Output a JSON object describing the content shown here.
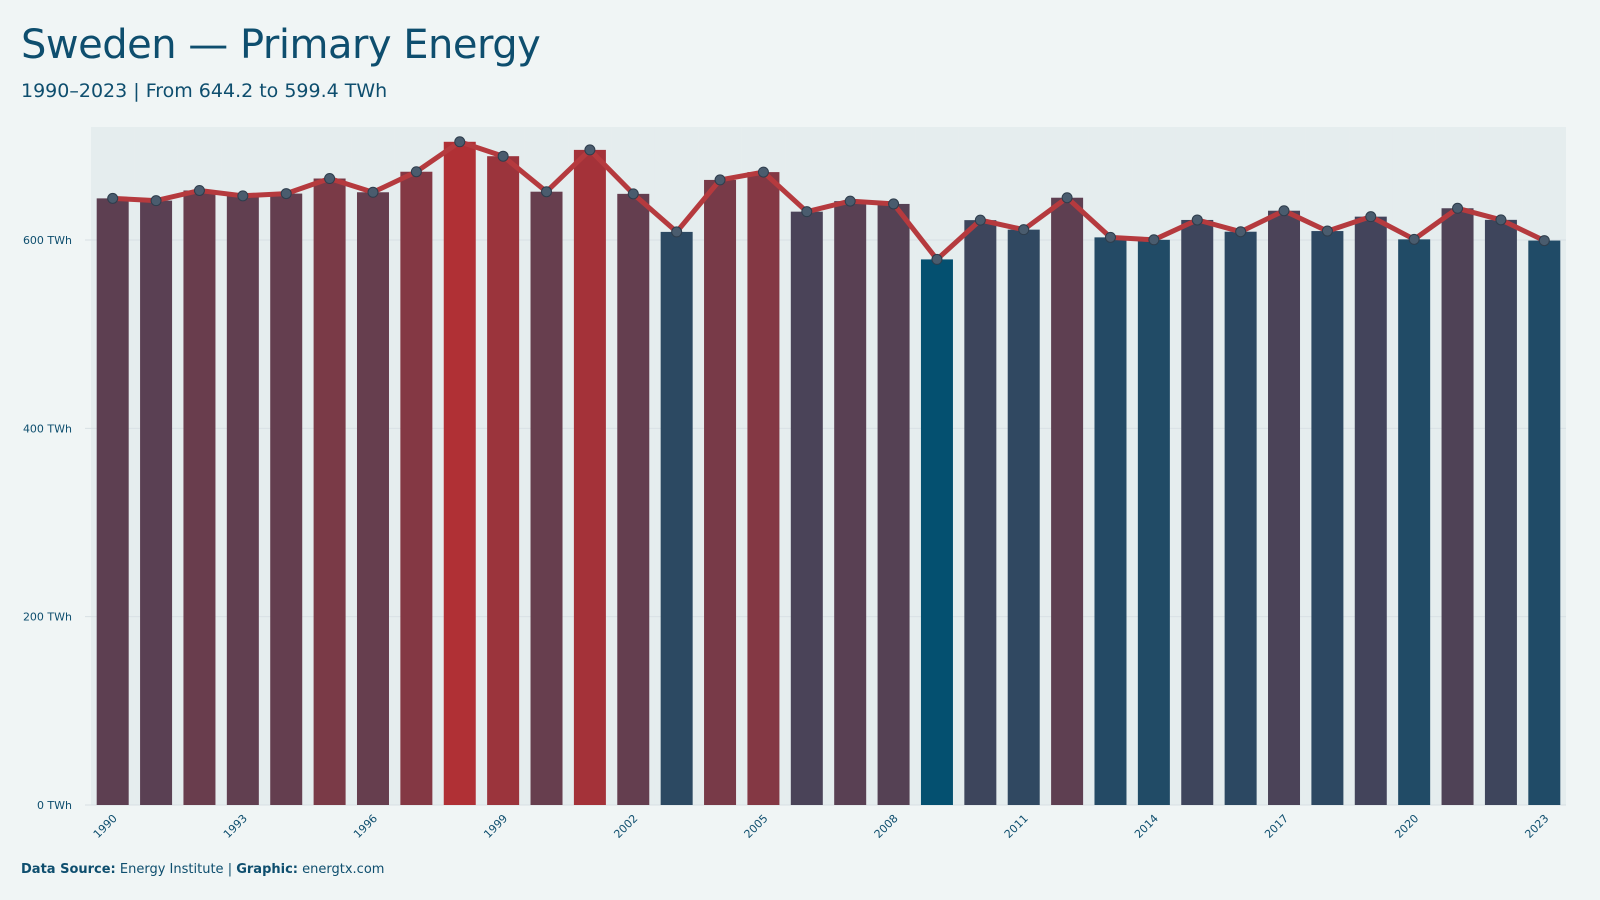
{
  "title": "Sweden — Primary Energy",
  "subtitle": "1990–2023 | From 644.2 to 599.4 TWh",
  "footer": {
    "source_label": "Data Source:",
    "source_value": "Energy Institute",
    "separator": "|",
    "graphic_label": "Graphic:",
    "graphic_value": "energtx.com"
  },
  "colors": {
    "background": "#f0f5f5",
    "low": "#045070",
    "high": "#b03035",
    "line": "#b53a3e",
    "marker_fill": "#4a5c6e",
    "text": "#0e4e6e",
    "grid": "#d8e0e4",
    "bar_gap_bg": "#dde5e8"
  },
  "chart_data": {
    "type": "bar",
    "years": [
      1990,
      1991,
      1992,
      1993,
      1994,
      1995,
      1996,
      1997,
      1998,
      1999,
      2000,
      2001,
      2002,
      2003,
      2004,
      2005,
      2006,
      2007,
      2008,
      2009,
      2010,
      2011,
      2012,
      2013,
      2014,
      2015,
      2016,
      2017,
      2018,
      2019,
      2020,
      2021,
      2022,
      2023
    ],
    "values": [
      644.2,
      641.8,
      652.6,
      646.9,
      649.3,
      665.3,
      650.7,
      672.5,
      704.3,
      689.0,
      651.3,
      695.7,
      649.0,
      608.6,
      663.8,
      672.1,
      630.1,
      641.3,
      638.3,
      579.4,
      621.1,
      611.0,
      644.9,
      602.8,
      600.2,
      621.3,
      608.8,
      631.1,
      609.5,
      624.8,
      600.7,
      633.7,
      621.4,
      599.4
    ],
    "overlay": "line",
    "x_tick_labels": [
      "1990",
      "1993",
      "1996",
      "1999",
      "2002",
      "2005",
      "2008",
      "2011",
      "2014",
      "2017",
      "2020",
      "2023"
    ],
    "y_ticks": [
      {
        "value": 0,
        "label": "0 TWh"
      },
      {
        "value": 200,
        "label": "200 TWh"
      },
      {
        "value": 400,
        "label": "400 TWh"
      },
      {
        "value": 600,
        "label": "600 TWh"
      }
    ],
    "ylim": [
      0,
      720
    ],
    "unit": "TWh",
    "grid": true,
    "legend": "none"
  }
}
